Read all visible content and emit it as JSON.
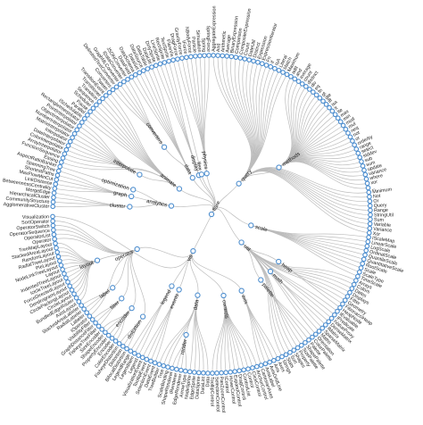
{
  "tree": {
    "name": "flare",
    "children": [
      {
        "name": "analytics",
        "children": [
          {
            "name": "cluster",
            "children": [
              {
                "name": "AgglomerativeCluster"
              },
              {
                "name": "CommunityStructure"
              },
              {
                "name": "HierarchicalCluster"
              },
              {
                "name": "MergeEdge"
              }
            ]
          },
          {
            "name": "graph",
            "children": [
              {
                "name": "BetweennessCentrality"
              },
              {
                "name": "LinkDistance"
              },
              {
                "name": "MaxFlowMinCut"
              },
              {
                "name": "ShortestPaths"
              },
              {
                "name": "SpanningTree"
              }
            ]
          },
          {
            "name": "optimization",
            "children": [
              {
                "name": "AspectRatioBanker"
              }
            ]
          }
        ]
      },
      {
        "name": "animate",
        "children": [
          {
            "name": "Easing"
          },
          {
            "name": "FunctionSequence"
          },
          {
            "name": "interpolate",
            "children": [
              {
                "name": "ArrayInterpolator"
              },
              {
                "name": "ColorInterpolator"
              },
              {
                "name": "DateInterpolator"
              },
              {
                "name": "Interpolator"
              },
              {
                "name": "MatrixInterpolator"
              },
              {
                "name": "NumberInterpolator"
              },
              {
                "name": "ObjectInterpolator"
              },
              {
                "name": "PointInterpolator"
              },
              {
                "name": "RectangleInterpolator"
              }
            ]
          },
          {
            "name": "ISchedulable"
          },
          {
            "name": "Parallel"
          },
          {
            "name": "Pause"
          },
          {
            "name": "Scheduler"
          },
          {
            "name": "Sequence"
          },
          {
            "name": "Transition"
          },
          {
            "name": "Transitioner"
          },
          {
            "name": "TransitionEvent"
          },
          {
            "name": "Tween"
          }
        ]
      },
      {
        "name": "data",
        "children": [
          {
            "name": "converters",
            "children": [
              {
                "name": "Converters"
              },
              {
                "name": "DelimitedTextConverter"
              },
              {
                "name": "GraphMLConverter"
              },
              {
                "name": "IDataConverter"
              },
              {
                "name": "JSONConverter"
              }
            ]
          },
          {
            "name": "DataField"
          },
          {
            "name": "DataSchema"
          },
          {
            "name": "DataSet"
          },
          {
            "name": "DataSource"
          },
          {
            "name": "DataTable"
          },
          {
            "name": "DataUtil"
          }
        ]
      },
      {
        "name": "display",
        "children": [
          {
            "name": "DirtySprite"
          },
          {
            "name": "LineSprite"
          },
          {
            "name": "RectSprite"
          },
          {
            "name": "TextSprite"
          }
        ]
      },
      {
        "name": "flex",
        "children": [
          {
            "name": "FlareVis"
          }
        ]
      },
      {
        "name": "physics",
        "children": [
          {
            "name": "DragForce"
          },
          {
            "name": "GravityForce"
          },
          {
            "name": "IForce"
          },
          {
            "name": "NBodyForce"
          },
          {
            "name": "Particle"
          },
          {
            "name": "Simulation"
          },
          {
            "name": "Spring"
          },
          {
            "name": "SpringForce"
          }
        ]
      },
      {
        "name": "query",
        "children": [
          {
            "name": "AggregateExpression"
          },
          {
            "name": "And"
          },
          {
            "name": "Arithmetic"
          },
          {
            "name": "Average"
          },
          {
            "name": "BinaryExpression"
          },
          {
            "name": "Comparison"
          },
          {
            "name": "CompositeExpression"
          },
          {
            "name": "Count"
          },
          {
            "name": "DateUtil"
          },
          {
            "name": "Distinct"
          },
          {
            "name": "Expression"
          },
          {
            "name": "ExpressionIterator"
          },
          {
            "name": "Fn"
          },
          {
            "name": "If"
          },
          {
            "name": "IsA"
          },
          {
            "name": "Literal"
          },
          {
            "name": "Match"
          },
          {
            "name": "Maximum"
          },
          {
            "name": "methods",
            "children": [
              {
                "name": "add"
              },
              {
                "name": "and"
              },
              {
                "name": "average"
              },
              {
                "name": "count"
              },
              {
                "name": "distinct"
              },
              {
                "name": "div"
              },
              {
                "name": "eq"
              },
              {
                "name": "fn"
              },
              {
                "name": "gt"
              },
              {
                "name": "gte"
              },
              {
                "name": "iff"
              },
              {
                "name": "isa"
              },
              {
                "name": "lt"
              },
              {
                "name": "lte"
              },
              {
                "name": "max"
              },
              {
                "name": "min"
              },
              {
                "name": "mod"
              },
              {
                "name": "mul"
              },
              {
                "name": "neq"
              },
              {
                "name": "not"
              },
              {
                "name": "or"
              },
              {
                "name": "orderby"
              },
              {
                "name": "range"
              },
              {
                "name": "select"
              },
              {
                "name": "stddev"
              },
              {
                "name": "sub"
              },
              {
                "name": "sum"
              },
              {
                "name": "update"
              },
              {
                "name": "variance"
              },
              {
                "name": "where"
              },
              {
                "name": "xor"
              },
              {
                "name": "_"
              }
            ]
          },
          {
            "name": "Minimum"
          },
          {
            "name": "Not"
          },
          {
            "name": "Or"
          },
          {
            "name": "Query"
          },
          {
            "name": "Range"
          },
          {
            "name": "StringUtil"
          },
          {
            "name": "Sum"
          },
          {
            "name": "Variable"
          },
          {
            "name": "Variance"
          },
          {
            "name": "Xor"
          }
        ]
      },
      {
        "name": "scale",
        "children": [
          {
            "name": "IScaleMap"
          },
          {
            "name": "LinearScale"
          },
          {
            "name": "LogScale"
          },
          {
            "name": "OrdinalScale"
          },
          {
            "name": "QuantileScale"
          },
          {
            "name": "QuantitativeScale"
          },
          {
            "name": "RootScale"
          },
          {
            "name": "Scale"
          },
          {
            "name": "ScaleType"
          },
          {
            "name": "TimeScale"
          }
        ]
      },
      {
        "name": "util",
        "children": [
          {
            "name": "Arrays"
          },
          {
            "name": "Colors"
          },
          {
            "name": "Dates"
          },
          {
            "name": "Displays"
          },
          {
            "name": "Filter"
          },
          {
            "name": "Geometry"
          },
          {
            "name": "heap",
            "children": [
              {
                "name": "FibonacciHeap"
              },
              {
                "name": "HeapNode"
              }
            ]
          },
          {
            "name": "IEvaluable"
          },
          {
            "name": "IPredicate"
          },
          {
            "name": "IValueProxy"
          },
          {
            "name": "math",
            "children": [
              {
                "name": "DenseMatrix"
              },
              {
                "name": "IMatrix"
              },
              {
                "name": "SparseMatrix"
              }
            ]
          },
          {
            "name": "Maths"
          },
          {
            "name": "Orientation"
          },
          {
            "name": "palette",
            "children": [
              {
                "name": "ColorPalette"
              },
              {
                "name": "Palette"
              },
              {
                "name": "ShapePalette"
              },
              {
                "name": "SizePalette"
              }
            ]
          },
          {
            "name": "Property"
          },
          {
            "name": "Shapes"
          },
          {
            "name": "Sort"
          },
          {
            "name": "Stats"
          },
          {
            "name": "Strings"
          }
        ]
      },
      {
        "name": "vis",
        "children": [
          {
            "name": "axis",
            "children": [
              {
                "name": "Axes"
              },
              {
                "name": "Axis"
              },
              {
                "name": "AxisGridLine"
              },
              {
                "name": "AxisLabel"
              },
              {
                "name": "CartesianAxes"
              }
            ]
          },
          {
            "name": "controls",
            "children": [
              {
                "name": "AnchorControl"
              },
              {
                "name": "ClickControl"
              },
              {
                "name": "Control"
              },
              {
                "name": "ControlList"
              },
              {
                "name": "DragControl"
              },
              {
                "name": "ExpandControl"
              },
              {
                "name": "HoverControl"
              },
              {
                "name": "IControl"
              },
              {
                "name": "PanZoomControl"
              },
              {
                "name": "SelectionControl"
              },
              {
                "name": "TooltipControl"
              }
            ]
          },
          {
            "name": "data",
            "children": [
              {
                "name": "Data"
              },
              {
                "name": "DataList"
              },
              {
                "name": "DataSprite"
              },
              {
                "name": "EdgeSprite"
              },
              {
                "name": "NodeSprite"
              },
              {
                "name": "render",
                "children": [
                  {
                    "name": "ArrowType"
                  },
                  {
                    "name": "EdgeRenderer"
                  },
                  {
                    "name": "IRenderer"
                  },
                  {
                    "name": "ShapeRenderer"
                  }
                ]
              },
              {
                "name": "ScaleBinding"
              },
              {
                "name": "Tree"
              },
              {
                "name": "TreeBuilder"
              }
            ]
          },
          {
            "name": "events",
            "children": [
              {
                "name": "DataEvent"
              },
              {
                "name": "SelectionEvent"
              },
              {
                "name": "TooltipEvent"
              },
              {
                "name": "VisualizationEvent"
              }
            ]
          },
          {
            "name": "legend",
            "children": [
              {
                "name": "Legend"
              },
              {
                "name": "LegendItem"
              },
              {
                "name": "LegendRange"
              }
            ]
          },
          {
            "name": "operator",
            "children": [
              {
                "name": "distortion",
                "children": [
                  {
                    "name": "BifocalDistortion"
                  },
                  {
                    "name": "Distortion"
                  },
                  {
                    "name": "FisheyeDistortion"
                  }
                ]
              },
              {
                "name": "encoder",
                "children": [
                  {
                    "name": "ColorEncoder"
                  },
                  {
                    "name": "Encoder"
                  },
                  {
                    "name": "PropertyEncoder"
                  },
                  {
                    "name": "ShapeEncoder"
                  },
                  {
                    "name": "SizeEncoder"
                  }
                ]
              },
              {
                "name": "filter",
                "children": [
                  {
                    "name": "FisheyeTreeFilter"
                  },
                  {
                    "name": "GraphDistanceFilter"
                  },
                  {
                    "name": "VisibilityFilter"
                  }
                ]
              },
              {
                "name": "IOperator"
              },
              {
                "name": "label",
                "children": [
                  {
                    "name": "Labeler"
                  },
                  {
                    "name": "RadialLabeler"
                  },
                  {
                    "name": "StackedAreaLabeler"
                  }
                ]
              },
              {
                "name": "layout",
                "children": [
                  {
                    "name": "AxisLayout"
                  },
                  {
                    "name": "BundledEdgeRouter"
                  },
                  {
                    "name": "CircleLayout"
                  },
                  {
                    "name": "CirclePackingLayout"
                  },
                  {
                    "name": "DendrogramLayout"
                  },
                  {
                    "name": "ForceDirectedLayout"
                  },
                  {
                    "name": "IcicleTreeLayout"
                  },
                  {
                    "name": "IndentedTreeLayout"
                  },
                  {
                    "name": "Layout"
                  },
                  {
                    "name": "NodeLinkTreeLayout"
                  },
                  {
                    "name": "PieLayout"
                  },
                  {
                    "name": "RadialTreeLayout"
                  },
                  {
                    "name": "RandomLayout"
                  },
                  {
                    "name": "StackedAreaLayout"
                  },
                  {
                    "name": "TreeMapLayout"
                  }
                ]
              },
              {
                "name": "Operator"
              },
              {
                "name": "OperatorList"
              },
              {
                "name": "OperatorSequence"
              },
              {
                "name": "OperatorSwitch"
              },
              {
                "name": "SortOperator"
              }
            ]
          },
          {
            "name": "Visualization"
          }
        ]
      }
    ]
  },
  "colors": {
    "link": "#bcbcbc",
    "node_stroke": "#4f8fcf",
    "node_fill": "#ffffff",
    "label": "#222222"
  }
}
